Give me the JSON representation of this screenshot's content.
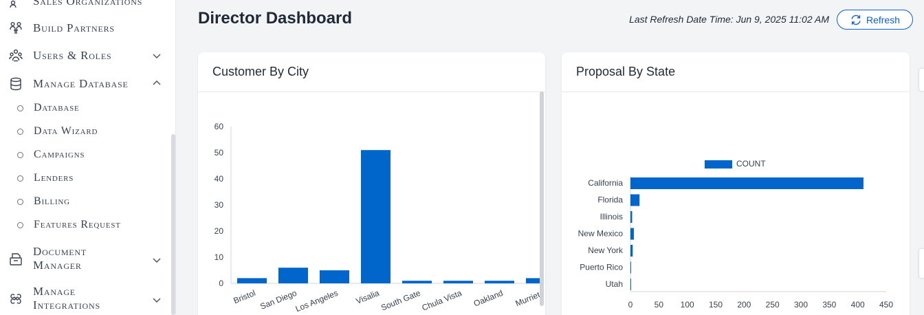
{
  "sidebar": {
    "items": [
      {
        "label": "Sales Organizations",
        "icon": "chart-people-icon"
      },
      {
        "label": "Build Partners",
        "icon": "partners-icon"
      },
      {
        "label": "Users & Roles",
        "icon": "users-roles-icon",
        "expandable": true,
        "expanded": false
      },
      {
        "label": "Manage Database",
        "icon": "database-icon",
        "expandable": true,
        "expanded": true
      },
      {
        "label": "Document",
        "label2": "Manager",
        "icon": "document-manager-icon",
        "expandable": true,
        "expanded": false
      },
      {
        "label": "Manage",
        "label2": "Integrations",
        "icon": "integrations-icon",
        "expandable": true,
        "expanded": false
      }
    ],
    "sub_items": [
      "Database",
      "Data Wizard",
      "Campaigns",
      "Lenders",
      "Billing",
      "Features Request"
    ]
  },
  "header": {
    "title": "Director Dashboard",
    "refresh_label": "Last Refresh Date Time:",
    "refresh_value": "Jun 9, 2025 11:02 AM",
    "refresh_button": "Refresh"
  },
  "colors": {
    "accent": "#0b5ed7",
    "bar": "#0066cc"
  },
  "cards": {
    "customer_by_city": {
      "title": "Customer By City"
    },
    "proposal_by_state": {
      "title": "Proposal By State"
    }
  },
  "chart_data": [
    {
      "type": "bar",
      "title": "Customer By City",
      "categories": [
        "Bristol",
        "San Diego",
        "Los Angeles",
        "Visalia",
        "South Gate",
        "Chula Vista",
        "Oakland",
        "Murrieta"
      ],
      "values": [
        2,
        6,
        5,
        51,
        1,
        1,
        1,
        2
      ],
      "ylim": [
        0,
        60
      ],
      "yticks": [
        0,
        10,
        20,
        30,
        40,
        50,
        60
      ],
      "xlabel": "",
      "ylabel": "",
      "grid": false
    },
    {
      "type": "bar",
      "orientation": "horizontal",
      "title": "Proposal By State",
      "categories": [
        "California",
        "Florida",
        "Illinois",
        "New Mexico",
        "New York",
        "Puerto Rico",
        "Utah"
      ],
      "series": [
        {
          "name": "COUNT",
          "values": [
            410,
            16,
            3,
            6,
            4,
            1,
            1
          ]
        }
      ],
      "xlim": [
        0,
        450
      ],
      "xticks": [
        0,
        50,
        100,
        150,
        200,
        250,
        300,
        350,
        400,
        450
      ],
      "legend": "top-center",
      "grid": false
    }
  ]
}
